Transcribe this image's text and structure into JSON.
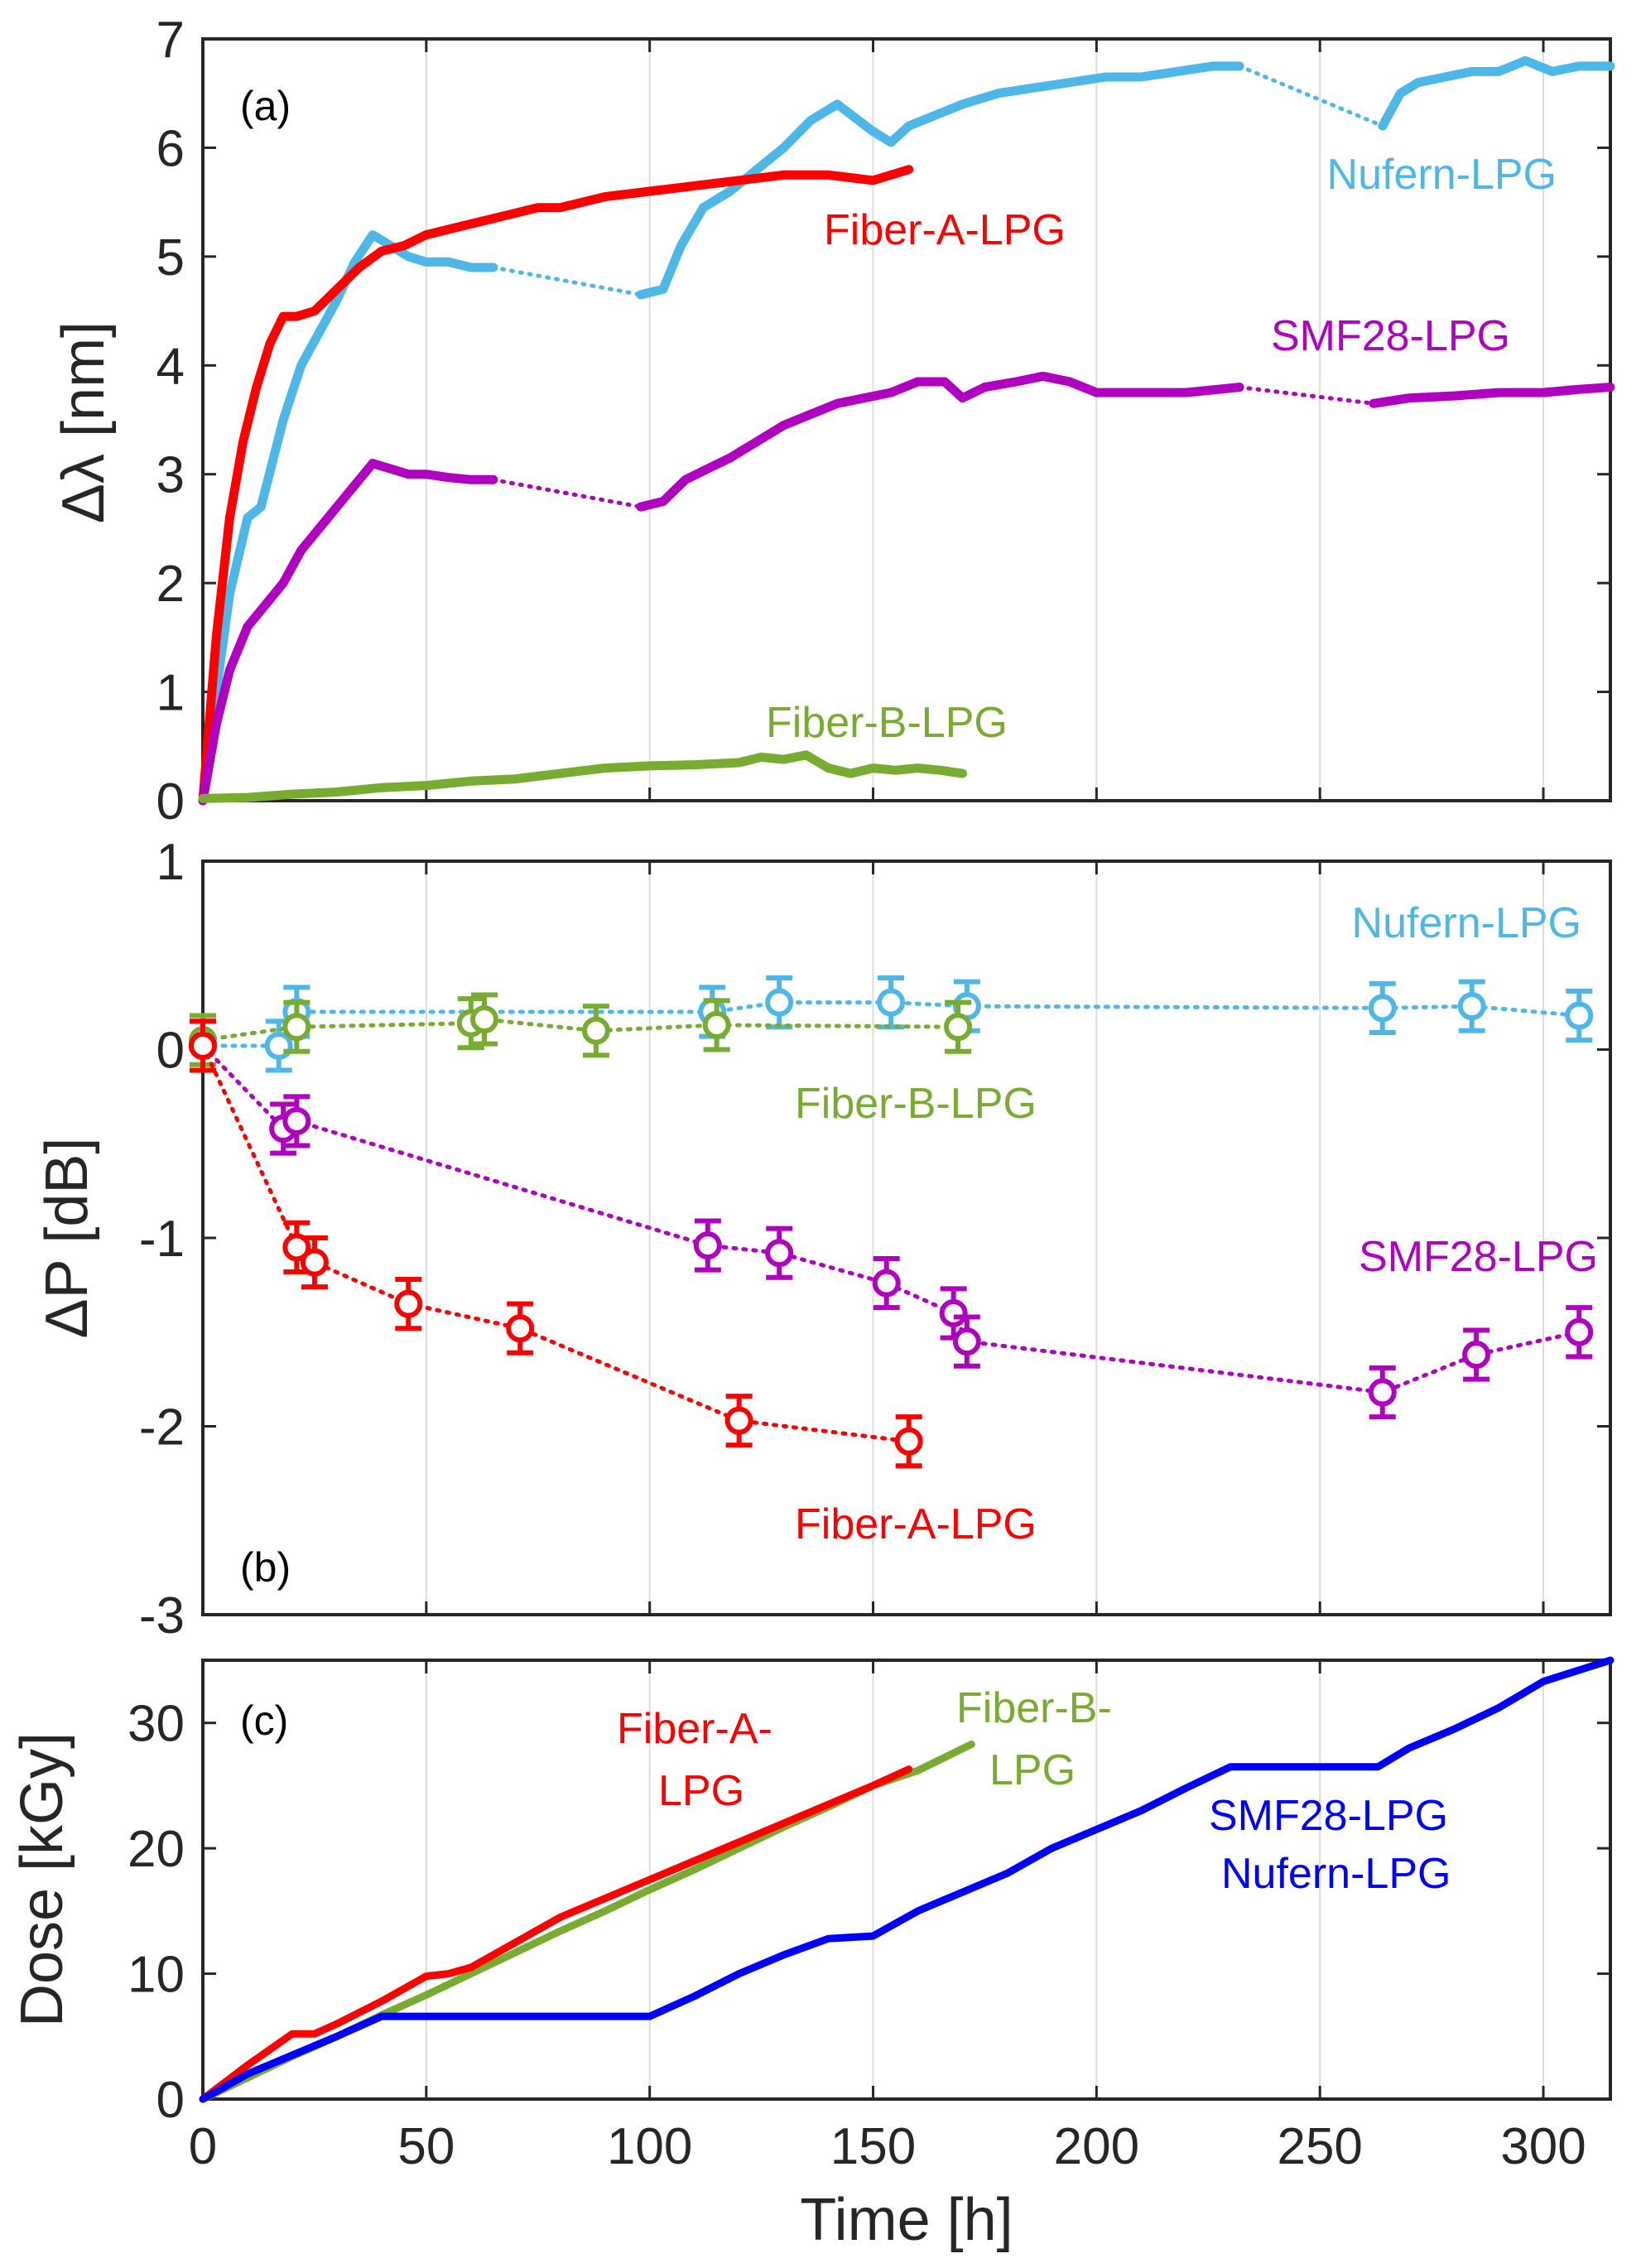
{
  "colors": {
    "nufern": "#4db8e8",
    "fiber_a": "#ff0000",
    "smf28": "#b000c0",
    "fiber_b": "#77ac30",
    "dose_combined": "#0000ff"
  },
  "x_axis": {
    "label": "Time [h]",
    "ticks": [
      "0",
      "50",
      "100",
      "150",
      "200",
      "250",
      "300"
    ]
  },
  "chart_data": [
    {
      "type": "line",
      "panel_tag": "(a)",
      "ylabel": "Δλ [nm]",
      "xlim": [
        0,
        315
      ],
      "ylim": [
        0,
        7
      ],
      "xticks": [
        0,
        50,
        100,
        150,
        200,
        250,
        300
      ],
      "yticks": [
        0,
        1,
        2,
        3,
        4,
        5,
        6,
        7
      ],
      "ytick_labels": [
        "0",
        "1",
        "2",
        "3",
        "4",
        "5",
        "6",
        "7"
      ],
      "grid": "x-major",
      "series": [
        {
          "name": "Nufern-LPG",
          "label": "Nufern-LPG",
          "color_key": "nufern",
          "segments": [
            {
              "style": "solid",
              "x": [
                0,
                3,
                6,
                10,
                13,
                18,
                22,
                26,
                30,
                34,
                38,
                42,
                46,
                50,
                55,
                60,
                65
              ],
              "y": [
                0,
                1.0,
                1.9,
                2.6,
                2.7,
                3.5,
                4.0,
                4.3,
                4.6,
                4.95,
                5.2,
                5.1,
                5.0,
                4.95,
                4.95,
                4.9,
                4.9
              ]
            },
            {
              "style": "dotted",
              "x": [
                65,
                98
              ],
              "y": [
                4.9,
                4.65
              ]
            },
            {
              "style": "solid",
              "x": [
                98,
                103,
                107,
                112,
                118,
                124,
                130,
                136,
                142,
                150,
                154,
                158,
                164,
                170,
                178,
                186,
                194,
                202,
                210,
                218,
                226,
                232
              ],
              "y": [
                4.65,
                4.7,
                5.1,
                5.45,
                5.6,
                5.8,
                6.0,
                6.25,
                6.4,
                6.15,
                6.05,
                6.2,
                6.3,
                6.4,
                6.5,
                6.55,
                6.6,
                6.65,
                6.65,
                6.7,
                6.75,
                6.75
              ]
            },
            {
              "style": "dotted",
              "x": [
                232,
                264
              ],
              "y": [
                6.75,
                6.2
              ]
            },
            {
              "style": "solid",
              "x": [
                264,
                268,
                272,
                278,
                284,
                290,
                296,
                302,
                308,
                315
              ],
              "y": [
                6.2,
                6.5,
                6.6,
                6.65,
                6.7,
                6.7,
                6.8,
                6.7,
                6.75,
                6.75
              ]
            }
          ]
        },
        {
          "name": "Fiber-A-LPG",
          "label": "Fiber-A-LPG",
          "color_key": "fiber_a",
          "segments": [
            {
              "style": "solid",
              "x": [
                0,
                3,
                6,
                9,
                12,
                15,
                18,
                21,
                25,
                30,
                35,
                40,
                45,
                50,
                55,
                60,
                65,
                70,
                75,
                80,
                90,
                100,
                110,
                120,
                130,
                140,
                150,
                158
              ],
              "y": [
                0,
                1.5,
                2.6,
                3.3,
                3.8,
                4.2,
                4.45,
                4.45,
                4.5,
                4.7,
                4.9,
                5.05,
                5.1,
                5.2,
                5.25,
                5.3,
                5.35,
                5.4,
                5.45,
                5.45,
                5.55,
                5.6,
                5.65,
                5.7,
                5.75,
                5.75,
                5.7,
                5.8
              ]
            }
          ]
        },
        {
          "name": "SMF28-LPG",
          "label": "SMF28-LPG",
          "color_key": "smf28",
          "segments": [
            {
              "style": "solid",
              "x": [
                0,
                3,
                6,
                10,
                14,
                18,
                22,
                26,
                30,
                34,
                38,
                42,
                46,
                50,
                55,
                60,
                65
              ],
              "y": [
                0,
                0.7,
                1.2,
                1.6,
                1.8,
                2.0,
                2.3,
                2.5,
                2.7,
                2.9,
                3.1,
                3.05,
                3.0,
                3.0,
                2.97,
                2.95,
                2.95
              ]
            },
            {
              "style": "dotted",
              "x": [
                65,
                98
              ],
              "y": [
                2.95,
                2.7
              ]
            },
            {
              "style": "solid",
              "x": [
                98,
                103,
                108,
                113,
                118,
                124,
                130,
                136,
                142,
                148,
                154,
                160,
                166,
                170,
                175,
                182,
                188,
                194,
                200,
                210,
                220,
                232
              ],
              "y": [
                2.7,
                2.75,
                2.95,
                3.05,
                3.15,
                3.3,
                3.45,
                3.55,
                3.65,
                3.7,
                3.75,
                3.85,
                3.85,
                3.7,
                3.8,
                3.85,
                3.9,
                3.85,
                3.75,
                3.75,
                3.75,
                3.8
              ]
            },
            {
              "style": "dotted",
              "x": [
                232,
                262
              ],
              "y": [
                3.8,
                3.65
              ]
            },
            {
              "style": "solid",
              "x": [
                262,
                270,
                280,
                290,
                300,
                308,
                315
              ],
              "y": [
                3.65,
                3.7,
                3.72,
                3.75,
                3.75,
                3.78,
                3.8
              ]
            }
          ]
        },
        {
          "name": "Fiber-B-LPG",
          "label": "Fiber-B-LPG",
          "color_key": "fiber_b",
          "segments": [
            {
              "style": "solid",
              "x": [
                0,
                10,
                20,
                30,
                40,
                50,
                60,
                70,
                80,
                90,
                100,
                110,
                120,
                125,
                130,
                135,
                140,
                145,
                150,
                155,
                160,
                165,
                170
              ],
              "y": [
                0.02,
                0.03,
                0.06,
                0.08,
                0.12,
                0.14,
                0.18,
                0.2,
                0.25,
                0.3,
                0.32,
                0.33,
                0.35,
                0.4,
                0.38,
                0.42,
                0.3,
                0.25,
                0.3,
                0.28,
                0.3,
                0.28,
                0.25
              ]
            }
          ]
        }
      ]
    },
    {
      "type": "scatter",
      "panel_tag": "(b)",
      "ylabel": "ΔP [dB]",
      "xlim": [
        0,
        315
      ],
      "ylim": [
        -3,
        1
      ],
      "xticks": [
        0,
        50,
        100,
        150,
        200,
        250,
        300
      ],
      "yticks": [
        -3,
        -2,
        -1,
        0,
        1
      ],
      "ytick_labels": [
        "-3",
        "-2",
        "-1",
        "0",
        "1"
      ],
      "grid": "x-major",
      "error_bar": 0.13,
      "connector": "dotted",
      "series": [
        {
          "name": "Nufern-LPG",
          "label": "Nufern-LPG",
          "color_key": "nufern",
          "x": [
            0,
            17,
            21,
            114,
            129,
            154,
            171,
            264,
            284,
            308
          ],
          "y": [
            0.02,
            0.02,
            0.2,
            0.2,
            0.25,
            0.25,
            0.23,
            0.22,
            0.23,
            0.18
          ]
        },
        {
          "name": "Fiber-B-LPG",
          "label": "Fiber-B-LPG",
          "color_key": "fiber_b",
          "x": [
            0,
            21,
            60,
            63,
            88,
            115,
            169
          ],
          "y": [
            0.05,
            0.12,
            0.14,
            0.16,
            0.1,
            0.13,
            0.12
          ]
        },
        {
          "name": "SMF28-LPG",
          "label": "SMF28-LPG",
          "color_key": "smf28",
          "x": [
            0,
            18,
            21,
            113,
            129,
            153,
            168,
            171,
            264,
            285,
            308
          ],
          "y": [
            0.02,
            -0.42,
            -0.38,
            -1.04,
            -1.08,
            -1.24,
            -1.4,
            -1.55,
            -1.82,
            -1.62,
            -1.5
          ]
        },
        {
          "name": "Fiber-A-LPG",
          "label": "Fiber-A-LPG",
          "color_key": "fiber_a",
          "x": [
            0,
            21,
            25,
            46,
            71,
            120,
            158
          ],
          "y": [
            0.02,
            -1.05,
            -1.13,
            -1.35,
            -1.48,
            -1.97,
            -2.08
          ]
        }
      ]
    },
    {
      "type": "line",
      "panel_tag": "(c)",
      "ylabel": "Dose [kGy]",
      "xlim": [
        0,
        315
      ],
      "ylim": [
        0,
        35
      ],
      "xticks": [
        0,
        50,
        100,
        150,
        200,
        250,
        300
      ],
      "yticks": [
        0,
        10,
        20,
        30
      ],
      "ytick_labels": [
        "0",
        "10",
        "20",
        "30"
      ],
      "grid": "x-major",
      "series": [
        {
          "name": "Fiber-B-LPG",
          "label_lines": [
            "Fiber-B-",
            "LPG"
          ],
          "color_key": "fiber_b",
          "x": [
            0,
            10,
            20,
            30,
            40,
            50,
            60,
            70,
            80,
            90,
            100,
            110,
            120,
            130,
            140,
            150,
            160,
            172
          ],
          "y": [
            0,
            1.7,
            3.4,
            5.0,
            6.7,
            8.3,
            10.0,
            11.7,
            13.4,
            15.0,
            16.7,
            18.3,
            20.0,
            21.7,
            23.3,
            25.0,
            26.2,
            28.3
          ]
        },
        {
          "name": "Fiber-A-LPG",
          "label_lines": [
            "Fiber-A-",
            "LPG"
          ],
          "color_key": "fiber_a",
          "x": [
            0,
            10,
            20,
            25,
            30,
            40,
            50,
            55,
            60,
            70,
            80,
            90,
            100,
            110,
            120,
            130,
            140,
            150,
            158
          ],
          "y": [
            0,
            2.7,
            5.2,
            5.2,
            6.0,
            7.8,
            9.8,
            10.0,
            10.5,
            12.5,
            14.5,
            16.0,
            17.5,
            19.0,
            20.5,
            22.0,
            23.5,
            25.0,
            26.3
          ]
        },
        {
          "name": "SMF28-LPG / Nufern-LPG",
          "label_lines": [
            "SMF28-LPG",
            "Nufern-LPG"
          ],
          "color_key": "dose_combined",
          "x": [
            0,
            10,
            20,
            30,
            40,
            60,
            80,
            100,
            110,
            120,
            130,
            140,
            150,
            160,
            170,
            180,
            190,
            200,
            210,
            220,
            230,
            250,
            263,
            270,
            280,
            290,
            300,
            315
          ],
          "y": [
            0,
            2.0,
            3.5,
            5.0,
            6.6,
            6.6,
            6.6,
            6.6,
            8.2,
            10.0,
            11.5,
            12.8,
            13.0,
            15.0,
            16.5,
            18.0,
            20.0,
            21.5,
            23.0,
            24.8,
            26.5,
            26.5,
            26.5,
            28.0,
            29.5,
            31.2,
            33.3,
            35.0
          ]
        }
      ]
    }
  ]
}
